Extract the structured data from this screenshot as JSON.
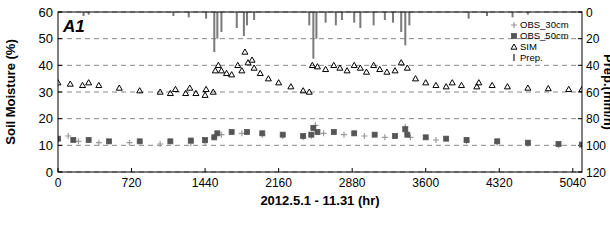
{
  "chart_data": {
    "type": "scatter",
    "title": "A1",
    "x_label": "2012.5.1 - 11.31 (hr)",
    "y_label": "Soil Moisture (%)",
    "y2_label": "Prep.(mm/h)",
    "xlim": [
      0,
      5130
    ],
    "xticks": [
      0,
      720,
      1440,
      2160,
      2880,
      3600,
      4320,
      5040
    ],
    "ylim": [
      0,
      60
    ],
    "yticks": [
      0,
      10,
      20,
      30,
      40,
      50,
      60
    ],
    "y2lim": [
      120,
      0
    ],
    "y2ticks": [
      0,
      20,
      40,
      60,
      80,
      100,
      120
    ],
    "grid": true,
    "legend": "upper right",
    "series": [
      {
        "name": "OBS_30cm",
        "color": "#9a9a9a",
        "marker": "plus",
        "x": [
          0,
          100,
          200,
          400,
          700,
          1000,
          1300,
          1440,
          1530,
          1600,
          1800,
          2000,
          2200,
          2400,
          2480,
          2520,
          2600,
          2800,
          3000,
          3200,
          3400,
          3450,
          3700,
          4000,
          4300,
          4600,
          4900,
          5130
        ],
        "values": [
          12,
          13.5,
          11.5,
          11,
          11,
          10.5,
          10.8,
          11,
          13,
          14,
          14.5,
          14,
          13.5,
          13,
          13.5,
          17.5,
          14.5,
          14,
          13.5,
          13,
          17,
          13,
          12,
          11.5,
          11,
          10.5,
          10,
          9.8
        ]
      },
      {
        "name": "OBS_50cm",
        "color": "#555555",
        "marker": "square",
        "x": [
          0,
          150,
          300,
          500,
          800,
          1100,
          1300,
          1440,
          1530,
          1560,
          1700,
          1850,
          2000,
          2200,
          2400,
          2480,
          2500,
          2540,
          2700,
          2900,
          3100,
          3300,
          3400,
          3420,
          3600,
          3800,
          4000,
          4300,
          4600,
          4900,
          5130
        ],
        "values": [
          12.5,
          12,
          12,
          11.5,
          11.5,
          11.5,
          11.8,
          12,
          13,
          14.5,
          15,
          15,
          14.5,
          14,
          13.5,
          14,
          16.5,
          15,
          15,
          14.5,
          14,
          13.5,
          16,
          14,
          13,
          12.5,
          12,
          11.5,
          11,
          10.5,
          10.3
        ]
      },
      {
        "name": "SIM",
        "color": "#000000",
        "marker": "triangle",
        "x": [
          0,
          120,
          240,
          300,
          400,
          600,
          800,
          1000,
          1100,
          1150,
          1250,
          1290,
          1350,
          1440,
          1450,
          1520,
          1540,
          1570,
          1600,
          1650,
          1700,
          1760,
          1800,
          1830,
          1860,
          1900,
          1920,
          1980,
          2060,
          2160,
          2280,
          2400,
          2460,
          2490,
          2540,
          2620,
          2700,
          2760,
          2830,
          2900,
          2960,
          3020,
          3090,
          3150,
          3220,
          3300,
          3360,
          3420,
          3500,
          3600,
          3700,
          3800,
          3860,
          3950,
          4100,
          4120,
          4250,
          4400,
          4600,
          4800,
          5000,
          5130
        ],
        "values": [
          33.5,
          33,
          32.5,
          33.5,
          32.5,
          31.5,
          30.5,
          30,
          29.5,
          31,
          29.5,
          31.5,
          29.5,
          28.8,
          31,
          30,
          38,
          40,
          38,
          37,
          36.5,
          40,
          38,
          45,
          41,
          42,
          39,
          37,
          35,
          33.5,
          32,
          30.5,
          30,
          40,
          39.5,
          38.5,
          40,
          39,
          38,
          40,
          39,
          37.5,
          40,
          38.5,
          37.5,
          38,
          41,
          39,
          35,
          33.5,
          32.5,
          32,
          33.5,
          32.5,
          32,
          33.5,
          32.5,
          32,
          31.5,
          31.3,
          31,
          31
        ]
      },
      {
        "name": "Prep.",
        "type": "bar",
        "axis": "y2",
        "color": "#7a7a7a",
        "x": [
          250,
          300,
          1130,
          1280,
          1450,
          1530,
          1560,
          1600,
          1750,
          1820,
          1850,
          1920,
          2460,
          2500,
          2530,
          2620,
          2720,
          2780,
          2900,
          2960,
          3090,
          3200,
          3280,
          3360,
          3400,
          3440,
          4020,
          4200,
          4450,
          4600
        ],
        "values": [
          3,
          2,
          3,
          4,
          5,
          30,
          20,
          15,
          12,
          18,
          10,
          6,
          10,
          35,
          20,
          8,
          10,
          6,
          8,
          12,
          10,
          6,
          8,
          15,
          25,
          10,
          5,
          3,
          4,
          2
        ]
      }
    ]
  }
}
